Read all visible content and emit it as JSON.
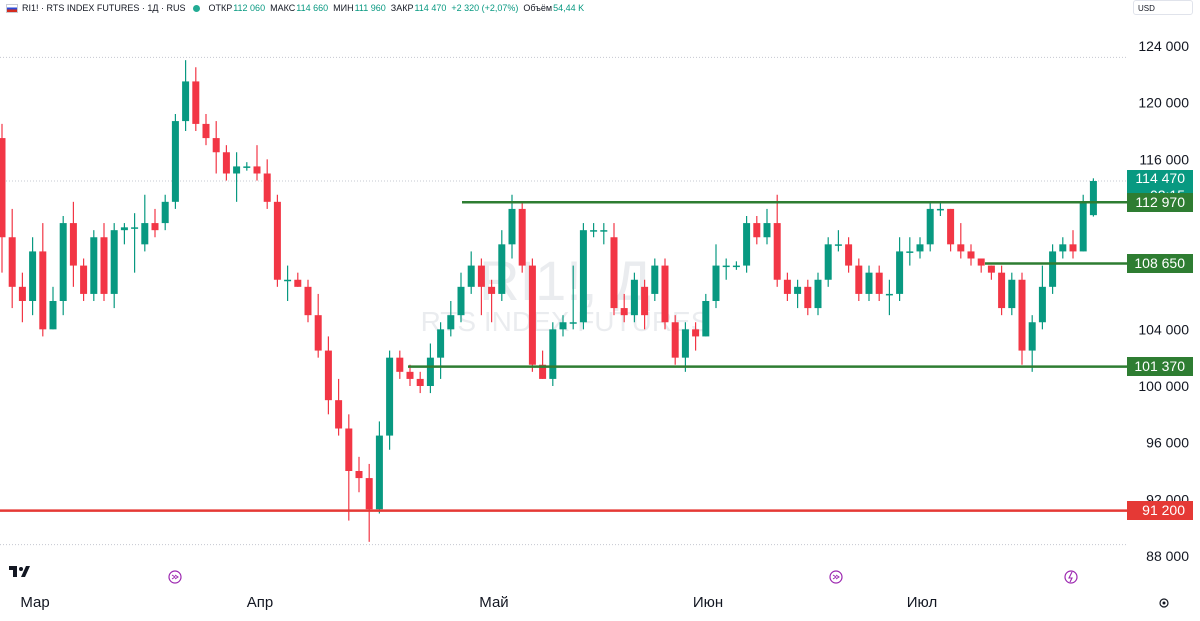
{
  "header": {
    "symbol": "RI1! · RTS INDEX FUTURES · 1Д · RUS",
    "open_label": "ОТКР",
    "open": "112 060",
    "high_label": "МАКС",
    "high": "114 660",
    "low_label": "МИН",
    "low": "111 960",
    "close_label": "ЗАКР",
    "close": "114 470",
    "change": "+2 320 (+2,07%)",
    "volume_label": "Объём",
    "volume": "54,44 K"
  },
  "currency": "USD",
  "watermark": {
    "main": "RI1!, Д",
    "sub": "RTS INDEX FUTURES"
  },
  "colors": {
    "up": "#089981",
    "down": "#f23645",
    "level_green": "#2e7d32",
    "level_red": "#e53935"
  },
  "chart_data": {
    "type": "candlestick",
    "ylim": [
      87000,
      126000
    ],
    "y_ticks": [
      88000,
      92000,
      96000,
      100000,
      104000,
      116000,
      120000,
      124000
    ],
    "x_ticks": [
      "Мар",
      "Апр",
      "Май",
      "Июн",
      "Июл"
    ],
    "candles": [
      [
        117500,
        110500,
        118500,
        108000
      ],
      [
        110500,
        107000,
        112500,
        105500
      ],
      [
        107000,
        106000,
        108000,
        104500
      ],
      [
        106000,
        109500,
        110500,
        105000
      ],
      [
        109500,
        104000,
        111500,
        103500
      ],
      [
        104000,
        106000,
        107000,
        104000
      ],
      [
        106000,
        111500,
        112000,
        105000
      ],
      [
        111500,
        108500,
        113000,
        107000
      ],
      [
        108500,
        106500,
        109000,
        106000
      ],
      [
        106500,
        110500,
        111000,
        106000
      ],
      [
        110500,
        106500,
        111500,
        106000
      ],
      [
        106500,
        111000,
        111500,
        105500
      ],
      [
        111000,
        111200,
        111500,
        110000
      ],
      [
        111200,
        111200,
        112200,
        108000
      ],
      [
        110000,
        111500,
        113500,
        109500
      ],
      [
        111500,
        111000,
        112500,
        110500
      ],
      [
        111500,
        113000,
        113500,
        111000
      ],
      [
        113000,
        118700,
        119200,
        112500
      ],
      [
        118700,
        121500,
        123000,
        118000
      ],
      [
        121500,
        118500,
        122500,
        118000
      ],
      [
        118500,
        117500,
        119200,
        117000
      ],
      [
        117500,
        116500,
        118700,
        115000
      ],
      [
        116500,
        115000,
        117000,
        114500
      ],
      [
        115000,
        115500,
        116500,
        113000
      ],
      [
        115500,
        115500,
        115800,
        115200
      ],
      [
        115500,
        115000,
        117000,
        114500
      ],
      [
        115000,
        113000,
        116000,
        112500
      ],
      [
        113000,
        107500,
        113500,
        107000
      ],
      [
        107500,
        107500,
        108500,
        106000
      ],
      [
        107500,
        107000,
        108000,
        107000
      ],
      [
        107000,
        105000,
        107500,
        104500
      ],
      [
        105000,
        102500,
        106500,
        102000
      ],
      [
        102500,
        99000,
        103500,
        98000
      ],
      [
        99000,
        97000,
        100500,
        96500
      ],
      [
        97000,
        94000,
        98000,
        90500
      ],
      [
        94000,
        93500,
        95000,
        92500
      ],
      [
        93500,
        91300,
        94500,
        89000
      ],
      [
        91300,
        96500,
        97500,
        91000
      ],
      [
        96500,
        102000,
        102500,
        95500
      ],
      [
        102000,
        101000,
        102500,
        100500
      ],
      [
        101000,
        100500,
        101500,
        100000
      ],
      [
        100500,
        100000,
        101000,
        99500
      ],
      [
        100000,
        102000,
        103000,
        99500
      ],
      [
        102000,
        104000,
        104500,
        100500
      ],
      [
        104000,
        105000,
        106000,
        103500
      ],
      [
        105000,
        107000,
        108000,
        104500
      ],
      [
        107000,
        108500,
        109500,
        106500
      ],
      [
        108500,
        107000,
        109000,
        105000
      ],
      [
        107000,
        106500,
        107500,
        104500
      ],
      [
        106500,
        110000,
        111000,
        106000
      ],
      [
        110000,
        112500,
        113500,
        109000
      ],
      [
        112500,
        108500,
        113000,
        108000
      ],
      [
        108500,
        101500,
        109000,
        101000
      ],
      [
        101500,
        100500,
        102500,
        100500
      ],
      [
        100500,
        104000,
        104500,
        100000
      ],
      [
        104000,
        104500,
        105000,
        103500
      ],
      [
        104500,
        104500,
        108500,
        104000
      ],
      [
        104500,
        111000,
        111500,
        104000
      ],
      [
        111000,
        111000,
        111500,
        110500
      ],
      [
        111000,
        111000,
        111500,
        110000
      ],
      [
        110500,
        105500,
        111500,
        105000
      ],
      [
        105500,
        105000,
        106500,
        104500
      ],
      [
        105000,
        107500,
        108000,
        104500
      ],
      [
        107000,
        105000,
        107500,
        104000
      ],
      [
        106500,
        108500,
        109000,
        106000
      ],
      [
        108500,
        104500,
        109000,
        104000
      ],
      [
        104500,
        102000,
        105000,
        101500
      ],
      [
        102000,
        104000,
        104500,
        101000
      ],
      [
        104000,
        103500,
        104500,
        102500
      ],
      [
        103500,
        106000,
        106500,
        103500
      ],
      [
        106000,
        108500,
        110000,
        105500
      ],
      [
        108500,
        108500,
        109000,
        107500
      ],
      [
        108500,
        108500,
        108800,
        108200
      ],
      [
        108500,
        111500,
        112000,
        108000
      ],
      [
        111500,
        110500,
        112000,
        110000
      ],
      [
        110500,
        111500,
        112500,
        110000
      ],
      [
        111500,
        107500,
        113500,
        107000
      ],
      [
        107500,
        106500,
        108000,
        106000
      ],
      [
        106500,
        107000,
        107500,
        105500
      ],
      [
        107000,
        105500,
        107500,
        105000
      ],
      [
        105500,
        107500,
        108000,
        105000
      ],
      [
        107500,
        110000,
        110500,
        107000
      ],
      [
        110000,
        110000,
        111000,
        109500
      ],
      [
        110000,
        108500,
        110500,
        108000
      ],
      [
        108500,
        106500,
        109000,
        106000
      ],
      [
        106500,
        108000,
        108500,
        106000
      ],
      [
        108000,
        106500,
        108500,
        106000
      ],
      [
        106500,
        106500,
        107500,
        105000
      ],
      [
        106500,
        109500,
        110500,
        106000
      ],
      [
        109500,
        109500,
        110500,
        108500
      ],
      [
        109500,
        110000,
        110500,
        109000
      ],
      [
        110000,
        112500,
        113000,
        109500
      ],
      [
        112500,
        112500,
        113000,
        112000
      ],
      [
        112500,
        110000,
        112500,
        109500
      ],
      [
        110000,
        109500,
        111500,
        109000
      ],
      [
        109500,
        109000,
        110000,
        108500
      ],
      [
        109000,
        108500,
        109000,
        108000
      ],
      [
        108500,
        108000,
        108500,
        107500
      ],
      [
        108000,
        105500,
        108500,
        105000
      ],
      [
        105500,
        107500,
        108000,
        105000
      ],
      [
        107500,
        102500,
        108000,
        101500
      ],
      [
        102500,
        104500,
        105000,
        101000
      ],
      [
        104500,
        107000,
        108500,
        104000
      ],
      [
        107000,
        109500,
        110000,
        106500
      ],
      [
        109500,
        110000,
        110500,
        109000
      ],
      [
        110000,
        109500,
        111000,
        109000
      ],
      [
        109500,
        113000,
        113500,
        109500
      ],
      [
        112060,
        114470,
        114660,
        111960
      ]
    ]
  },
  "levels": [
    {
      "value": 112970,
      "label": "112 970",
      "color": "#2e7d32"
    },
    {
      "value": 108650,
      "label": "108 650",
      "color": "#2e7d32"
    },
    {
      "value": 101370,
      "label": "101 370",
      "color": "#2e7d32"
    },
    {
      "value": 91200,
      "label": "91 200",
      "color": "#e53935"
    }
  ],
  "last_price": {
    "value": 114470,
    "label": "114 470",
    "timer": "02:15",
    "color": "#089981"
  }
}
